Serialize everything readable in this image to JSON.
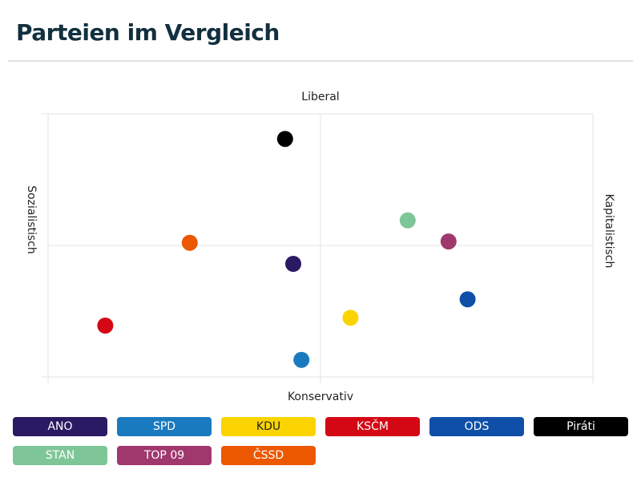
{
  "header": {
    "title": "Parteien im Vergleich"
  },
  "chart_data": {
    "type": "scatter",
    "title": "",
    "axes": {
      "top": "Liberal",
      "bottom": "Konservativ",
      "left": "Sozialistisch",
      "right": "Kapitalistisch"
    },
    "xlim": [
      -1,
      1
    ],
    "ylim": [
      -1,
      1
    ],
    "grid": true,
    "legend_position": "bottom",
    "points": [
      {
        "name": "ANO",
        "x": -0.1,
        "y": -0.14,
        "color": "#2a1a63"
      },
      {
        "name": "SPD",
        "x": -0.07,
        "y": -0.87,
        "color": "#1a7abf"
      },
      {
        "name": "KDU",
        "x": 0.11,
        "y": -0.55,
        "color": "#fbd400"
      },
      {
        "name": "KSČM",
        "x": -0.79,
        "y": -0.61,
        "color": "#d40814"
      },
      {
        "name": "ODS",
        "x": 0.54,
        "y": -0.41,
        "color": "#0f4fa8"
      },
      {
        "name": "Piráti",
        "x": -0.13,
        "y": 0.81,
        "color": "#000000"
      },
      {
        "name": "STAN",
        "x": 0.32,
        "y": 0.19,
        "color": "#7ec697"
      },
      {
        "name": "TOP 09",
        "x": 0.47,
        "y": 0.03,
        "color": "#a0376d"
      },
      {
        "name": "ČSSD",
        "x": -0.48,
        "y": 0.02,
        "color": "#ec5800"
      }
    ]
  },
  "legend": {
    "items": [
      {
        "label": "ANO",
        "color": "#2a1a63",
        "text": "light"
      },
      {
        "label": "SPD",
        "color": "#1a7abf",
        "text": "light"
      },
      {
        "label": "KDU",
        "color": "#fbd400",
        "text": "dark"
      },
      {
        "label": "KSČM",
        "color": "#d40814",
        "text": "light"
      },
      {
        "label": "ODS",
        "color": "#0f4fa8",
        "text": "light"
      },
      {
        "label": "Piráti",
        "color": "#000000",
        "text": "light"
      },
      {
        "label": "STAN",
        "color": "#7ec697",
        "text": "light"
      },
      {
        "label": "TOP 09",
        "color": "#a0376d",
        "text": "light"
      },
      {
        "label": "ČSSD",
        "color": "#ec5800",
        "text": "light"
      }
    ]
  }
}
